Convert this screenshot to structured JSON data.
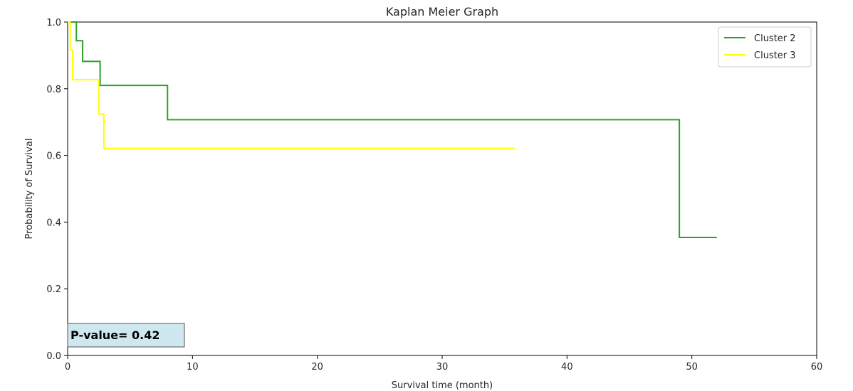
{
  "chart_data": {
    "type": "line",
    "title": "Kaplan Meier Graph",
    "xlabel": "Survival time (month)",
    "ylabel": "Probability of Survival",
    "xlim": [
      0,
      60
    ],
    "ylim": [
      0.0,
      1.0
    ],
    "xticks": [
      0,
      10,
      20,
      30,
      40,
      50,
      60
    ],
    "xtick_labels": [
      "0",
      "10",
      "20",
      "30",
      "40",
      "50",
      "60"
    ],
    "yticks": [
      0.0,
      0.2,
      0.4,
      0.6,
      0.8,
      1.0
    ],
    "ytick_labels": [
      "0.0",
      "0.2",
      "0.4",
      "0.6",
      "0.8",
      "1.0"
    ],
    "grid": false,
    "step": "post",
    "legend_position": "top-right",
    "series": [
      {
        "name": "Cluster 2",
        "color": "#2ca02c",
        "x": [
          0,
          0.7,
          1.2,
          2.6,
          8.0,
          49.0,
          52.0
        ],
        "y": [
          1.0,
          0.944,
          0.882,
          0.81,
          0.707,
          0.354,
          0.354
        ]
      },
      {
        "name": "Cluster 3",
        "color": "#ffff00",
        "x": [
          0,
          0.2,
          0.4,
          2.5,
          2.9,
          35.8
        ],
        "y": [
          1.0,
          0.917,
          0.827,
          0.724,
          0.621,
          0.621
        ]
      }
    ],
    "annotation": {
      "text": "P-value= 0.42",
      "position": "bottom-left",
      "box_color": "#cfe8ef"
    }
  }
}
